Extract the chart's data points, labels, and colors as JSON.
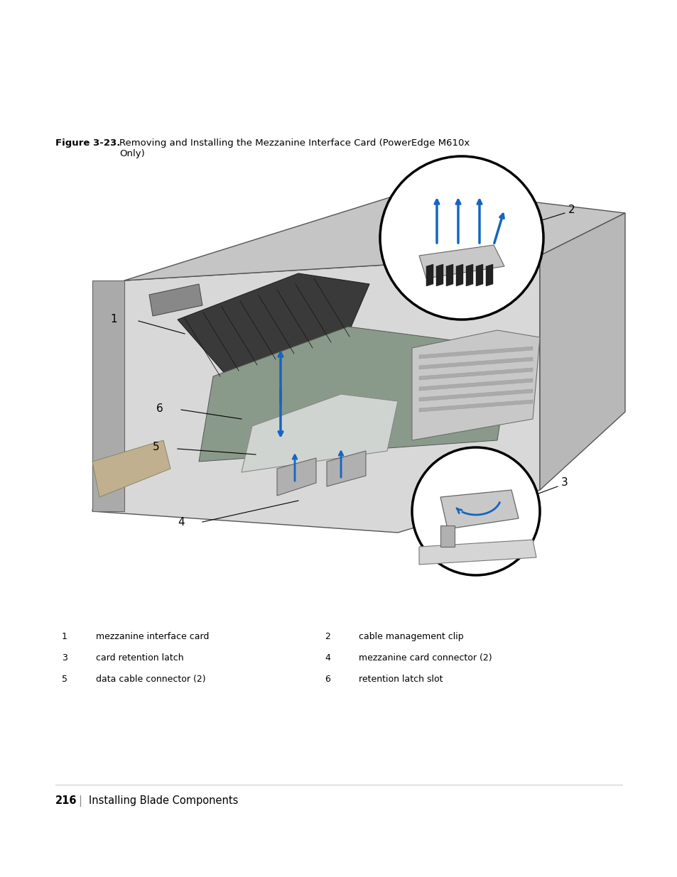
{
  "figure_label": "Figure 3-23.",
  "figure_title": "Removing and Installing the Mezzanine Interface Card (PowerEdge M610x\nOnly)",
  "legend_items": [
    {
      "num": "1",
      "label": "mezzanine interface card",
      "col": 0
    },
    {
      "num": "2",
      "label": "cable management clip",
      "col": 1
    },
    {
      "num": "3",
      "label": "card retention latch",
      "col": 0
    },
    {
      "num": "4",
      "label": "mezzanine card connector (2)",
      "col": 1
    },
    {
      "num": "5",
      "label": "data cable connector (2)",
      "col": 0
    },
    {
      "num": "6",
      "label": "retention latch slot",
      "col": 1
    }
  ],
  "page_number": "216",
  "page_text": "Installing Blade Components",
  "bg_color": "#ffffff",
  "text_color": "#000000",
  "label_color": "#1a1a1a",
  "figure_label_bold": true,
  "figure_title_fontsize": 9.5,
  "legend_fontsize": 9.0,
  "page_fontsize": 10.5
}
